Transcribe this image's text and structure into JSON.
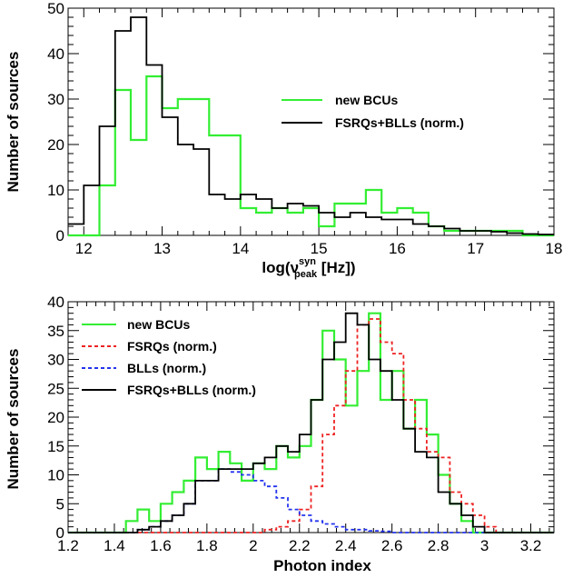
{
  "colors": {
    "new_bcus": "#33ee33",
    "fsrqs": "#ee2222",
    "blls": "#2233ee",
    "combined": "#000000"
  },
  "chart_data": [
    {
      "type": "line",
      "ylabel": "Number of sources",
      "xlabel_main": "log(ν",
      "xlabel_sup": "syn",
      "xlabel_sub": "peak",
      "xlabel_tail": " [Hz])",
      "xlim": [
        11.8,
        18.0
      ],
      "ylim": [
        0,
        50
      ],
      "xticks": [
        "12",
        "13",
        "14",
        "15",
        "16",
        "17",
        "18"
      ],
      "yticks": [
        "0",
        "10",
        "20",
        "30",
        "40",
        "50"
      ],
      "legend_position": "top-right",
      "bin_edges": [
        11.8,
        12.0,
        12.2,
        12.4,
        12.6,
        12.8,
        13.0,
        13.2,
        13.4,
        13.6,
        13.8,
        14.0,
        14.2,
        14.4,
        14.6,
        14.8,
        15.0,
        15.2,
        15.4,
        15.6,
        15.8,
        16.0,
        16.2,
        16.4,
        16.6,
        16.8,
        17.0,
        17.2,
        17.4,
        17.6,
        17.8,
        18.0
      ],
      "series": [
        {
          "name": "new BCUs",
          "color_key": "new_bcus",
          "dash": false,
          "values": [
            0,
            0,
            11,
            32,
            21,
            35,
            28,
            30,
            30,
            22,
            22,
            6,
            5,
            6,
            5,
            6,
            2,
            7,
            7,
            10,
            5,
            6,
            5,
            2,
            1,
            1,
            1,
            1,
            1,
            0,
            0
          ]
        },
        {
          "name": "FSRQs+BLLs (norm.)",
          "color_key": "combined",
          "dash": false,
          "values": [
            2.5,
            11,
            24,
            45,
            48,
            37.5,
            26,
            20,
            19,
            9,
            8,
            9,
            8,
            6,
            7,
            6.5,
            5,
            4,
            5,
            4,
            3.5,
            3.5,
            2.5,
            2,
            1.5,
            1,
            1,
            0.8,
            0.5,
            0.3,
            0.2
          ]
        }
      ]
    },
    {
      "type": "line",
      "ylabel": "Number of sources",
      "xlabel": "Photon index",
      "xlim": [
        1.2,
        3.3
      ],
      "ylim": [
        0,
        40
      ],
      "xticks": [
        "1.2",
        "1.4",
        "1.6",
        "1.8",
        "2",
        "2.2",
        "2.4",
        "2.6",
        "2.8",
        "3",
        "3.2"
      ],
      "yticks": [
        "0",
        "5",
        "10",
        "15",
        "20",
        "25",
        "30",
        "35",
        "40"
      ],
      "legend_position": "top-left",
      "bin_edges_start": 1.2,
      "bin_width": 0.05,
      "series": [
        {
          "name": "new BCUs",
          "color_key": "new_bcus",
          "dash": false,
          "values": [
            0,
            0,
            0,
            0,
            0,
            2,
            4,
            2,
            5,
            7,
            9,
            13,
            11,
            14,
            12,
            9,
            12,
            11,
            15,
            13,
            15,
            23,
            35,
            30,
            22,
            28,
            38,
            23,
            28,
            18,
            23,
            17,
            10,
            5,
            2,
            0,
            0,
            0,
            0,
            0,
            0,
            0
          ]
        },
        {
          "name": "FSRQs (norm.)",
          "color_key": "fsrqs",
          "dash": true,
          "values": [
            0,
            0,
            0,
            0,
            0,
            0,
            0,
            0,
            0,
            0,
            0,
            0,
            0,
            0,
            0,
            0,
            0,
            0.5,
            1,
            2,
            4,
            8,
            17,
            22,
            28,
            36,
            37,
            33,
            31,
            23,
            18,
            14,
            13,
            7,
            5,
            3,
            1,
            0,
            0,
            0,
            0,
            0
          ]
        },
        {
          "name": "BLLs (norm.)",
          "color_key": "blls",
          "dash": true,
          "values": [
            0,
            0,
            0,
            0,
            0,
            0,
            0.5,
            1,
            2,
            3,
            5,
            9,
            9,
            11,
            10.5,
            10,
            9,
            8,
            6,
            4,
            3,
            2,
            1.5,
            1,
            0.5,
            0.5,
            0.3,
            0.2,
            0,
            0,
            0,
            0,
            0,
            0,
            0,
            0,
            0,
            0,
            0,
            0,
            0,
            0
          ]
        },
        {
          "name": "FSRQs+BLLs (norm.)",
          "color_key": "combined",
          "dash": false,
          "values": [
            0,
            0,
            0,
            0,
            0,
            0,
            0.5,
            1,
            2,
            3,
            5,
            9,
            9,
            11,
            11,
            11,
            12,
            13,
            15,
            14,
            17,
            23,
            30,
            33,
            38,
            36,
            30,
            28,
            23,
            18,
            14,
            13,
            7,
            5,
            3,
            1,
            0,
            0,
            0,
            0,
            0,
            0
          ]
        }
      ]
    }
  ]
}
